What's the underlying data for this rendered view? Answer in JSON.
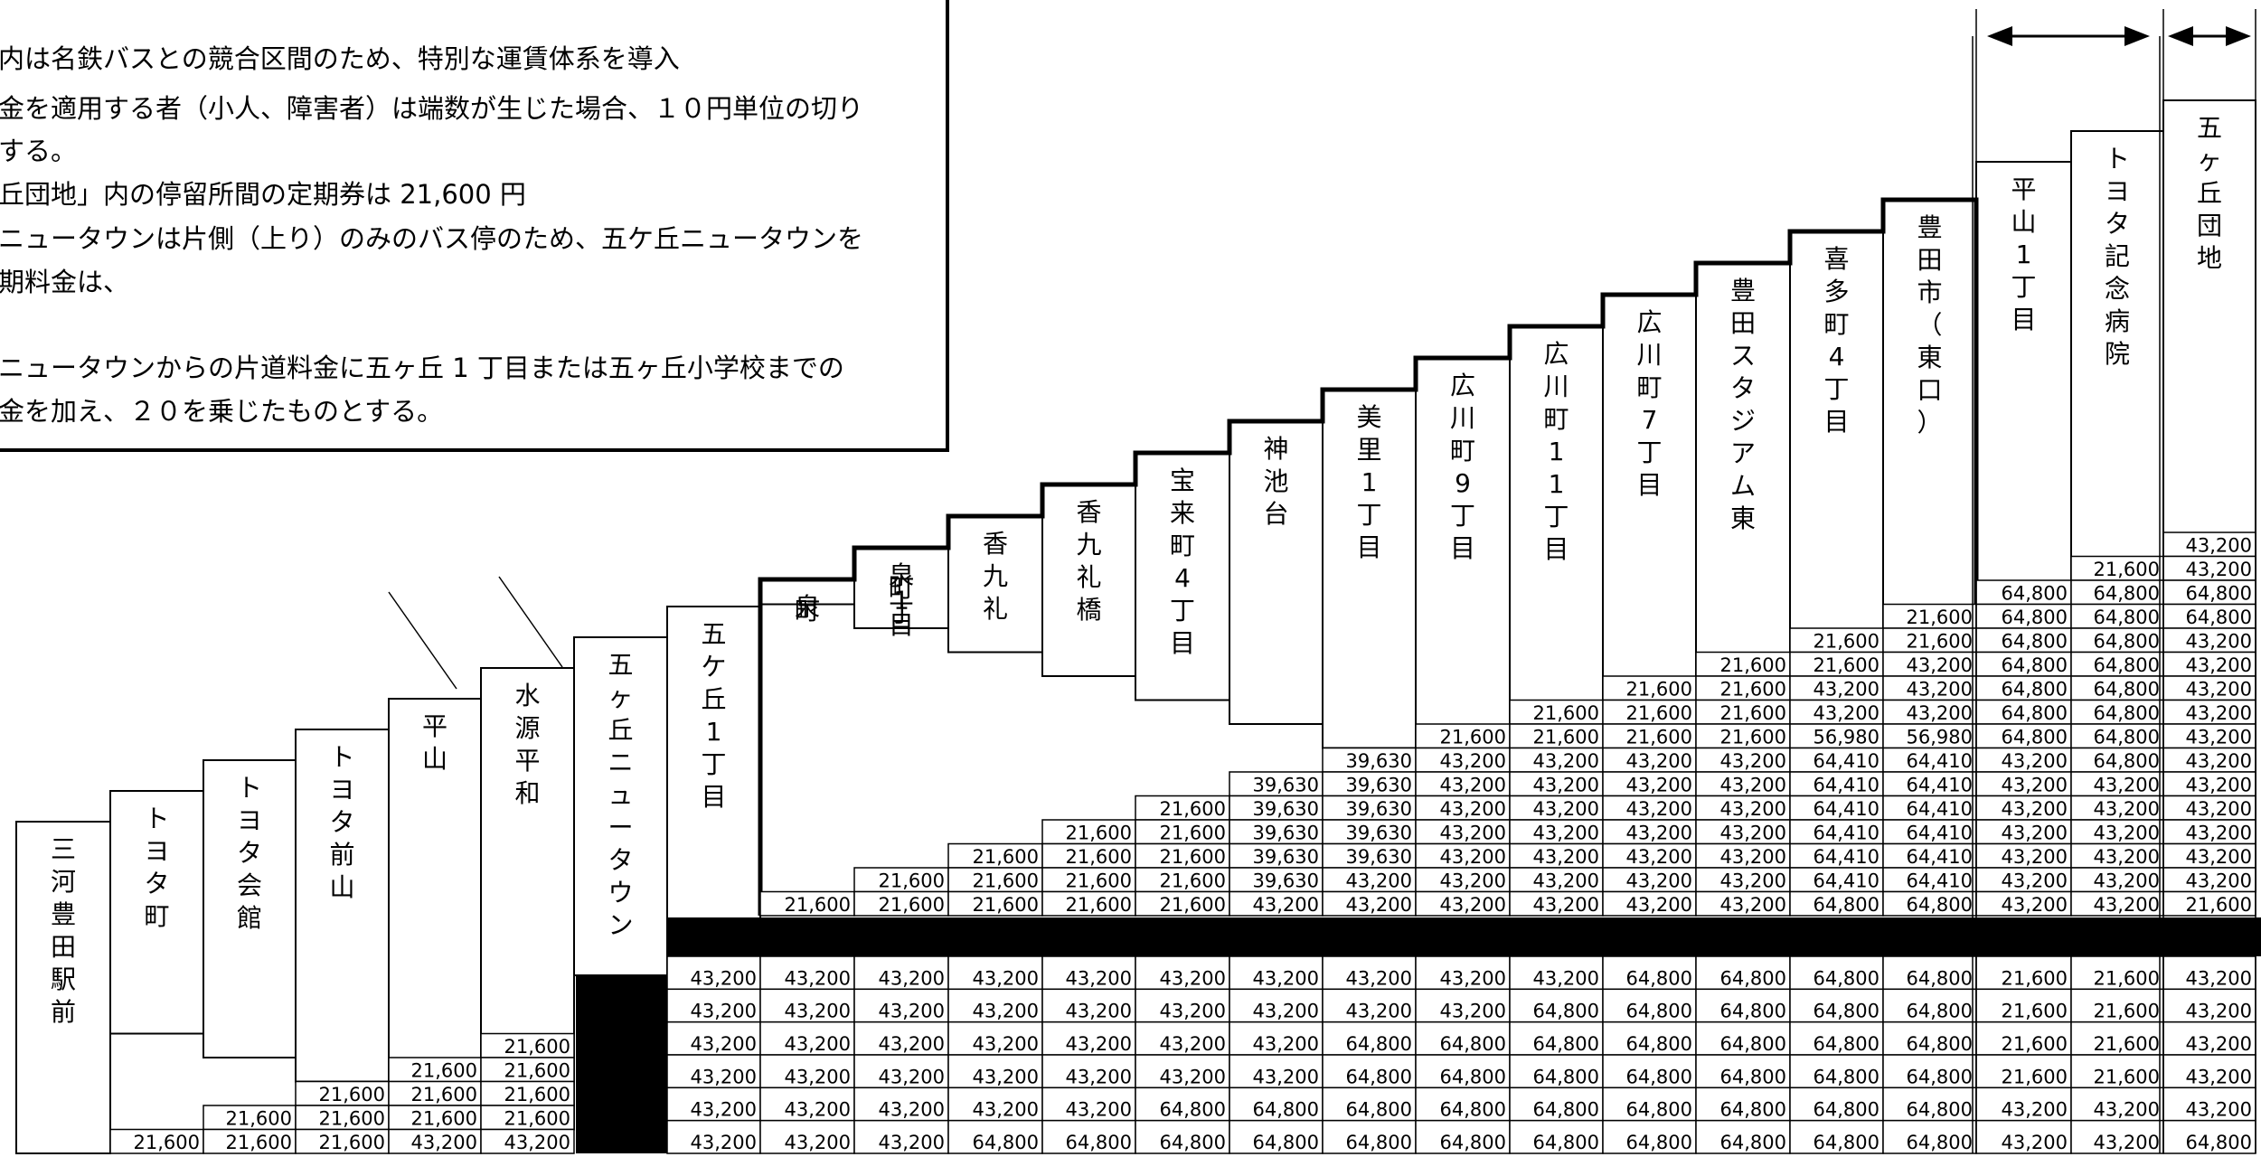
{
  "notes": {
    "lines": [
      "内は名鉄バスとの競合区間のため、特別な運賃体系を導入",
      "金を適用する者（小人、障害者）は端数が生じた場合、１０円単位の切り",
      "する。",
      "丘団地」内の停留所間の定期券は 21,600 円",
      "ニュータウンは片側（上り）のみのバス停のため、五ケ丘ニュータウンを",
      "期料金は、",
      "ニュータウンからの片道料金に五ヶ丘 1 丁目または五ヶ丘小学校までの",
      "金を加え、２０を乗じたものとする。"
    ]
  },
  "stops": [
    "三河豊田駅前",
    "トヨタ町",
    "トヨタ会館",
    "トヨタ前山",
    "平山",
    "水源平和",
    "五ヶ丘ニュータウン",
    "五ケ丘1丁目",
    "泉町",
    "泉町1丁目",
    "香九礼",
    "香九礼橋",
    "宝来町4丁目",
    "神池台",
    "美里1丁目",
    "広川町9丁目",
    "広川町11丁目",
    "広川町7丁目",
    "豊田スタジアム東",
    "喜多町4丁目",
    "豊田市（東口）",
    "平山1丁目",
    "トヨタ記念病院",
    "五ヶ丘団地"
  ],
  "fares": {
    "upper_rows": [
      {
        "start": 23,
        "values": [
          "43,200"
        ]
      },
      {
        "start": 22,
        "values": [
          "21,600",
          "43,200"
        ]
      },
      {
        "start": 21,
        "values": [
          "64,800",
          "64,800",
          "64,800"
        ]
      },
      {
        "start": 20,
        "values": [
          "21,600",
          "64,800",
          "64,800",
          "64,800"
        ]
      },
      {
        "start": 19,
        "values": [
          "21,600",
          "21,600",
          "64,800",
          "64,800",
          "43,200"
        ]
      },
      {
        "start": 18,
        "values": [
          "21,600",
          "21,600",
          "43,200",
          "64,800",
          "64,800",
          "43,200"
        ]
      },
      {
        "start": 17,
        "values": [
          "21,600",
          "21,600",
          "43,200",
          "43,200",
          "64,800",
          "64,800",
          "43,200"
        ]
      },
      {
        "start": 16,
        "values": [
          "21,600",
          "21,600",
          "21,600",
          "43,200",
          "43,200",
          "64,800",
          "64,800",
          "43,200"
        ]
      },
      {
        "start": 15,
        "values": [
          "21,600",
          "21,600",
          "21,600",
          "21,600",
          "56,980",
          "56,980",
          "64,800",
          "64,800",
          "43,200"
        ]
      },
      {
        "start": 14,
        "values": [
          "39,630",
          "43,200",
          "43,200",
          "43,200",
          "43,200",
          "64,410",
          "64,410",
          "43,200",
          "64,800",
          "43,200"
        ]
      },
      {
        "start": 13,
        "values": [
          "39,630",
          "39,630",
          "43,200",
          "43,200",
          "43,200",
          "43,200",
          "64,410",
          "64,410",
          "43,200",
          "43,200",
          "43,200"
        ]
      },
      {
        "start": 12,
        "values": [
          "21,600",
          "39,630",
          "39,630",
          "43,200",
          "43,200",
          "43,200",
          "43,200",
          "64,410",
          "64,410",
          "43,200",
          "43,200",
          "43,200"
        ]
      },
      {
        "start": 11,
        "values": [
          "21,600",
          "21,600",
          "39,630",
          "39,630",
          "43,200",
          "43,200",
          "43,200",
          "43,200",
          "64,410",
          "64,410",
          "43,200",
          "43,200",
          "43,200"
        ]
      },
      {
        "start": 10,
        "values": [
          "21,600",
          "21,600",
          "21,600",
          "39,630",
          "39,630",
          "43,200",
          "43,200",
          "43,200",
          "43,200",
          "64,410",
          "64,410",
          "43,200",
          "43,200",
          "43,200"
        ]
      },
      {
        "start": 9,
        "values": [
          "21,600",
          "21,600",
          "21,600",
          "21,600",
          "39,630",
          "43,200",
          "43,200",
          "43,200",
          "43,200",
          "43,200",
          "64,410",
          "64,410",
          "43,200",
          "43,200",
          "43,200"
        ]
      },
      {
        "start": 8,
        "values": [
          "21,600",
          "21,600",
          "21,600",
          "21,600",
          "21,600",
          "43,200",
          "43,200",
          "43,200",
          "43,200",
          "43,200",
          "43,200",
          "64,800",
          "64,800",
          "43,200",
          "43,200",
          "21,600"
        ]
      }
    ],
    "left_rows": [
      {
        "start": 5,
        "values": [
          "21,600"
        ]
      },
      {
        "start": 4,
        "values": [
          "21,600",
          "21,600"
        ]
      },
      {
        "start": 3,
        "values": [
          "21,600",
          "21,600",
          "21,600"
        ]
      },
      {
        "start": 2,
        "values": [
          "21,600",
          "21,600",
          "21,600",
          "21,600"
        ]
      },
      {
        "start": 1,
        "values": [
          "21,600",
          "21,600",
          "21,600",
          "43,200",
          "43,200"
        ]
      }
    ],
    "lower_rows": [
      [
        "43,200",
        "43,200",
        "43,200",
        "43,200",
        "43,200",
        "43,200",
        "43,200",
        "43,200",
        "43,200",
        "43,200",
        "64,800",
        "64,800",
        "64,800",
        "64,800",
        "21,600",
        "21,600",
        "43,200"
      ],
      [
        "43,200",
        "43,200",
        "43,200",
        "43,200",
        "43,200",
        "43,200",
        "43,200",
        "43,200",
        "43,200",
        "64,800",
        "64,800",
        "64,800",
        "64,800",
        "64,800",
        "21,600",
        "21,600",
        "43,200"
      ],
      [
        "43,200",
        "43,200",
        "43,200",
        "43,200",
        "43,200",
        "43,200",
        "43,200",
        "64,800",
        "64,800",
        "64,800",
        "64,800",
        "64,800",
        "64,800",
        "64,800",
        "21,600",
        "21,600",
        "43,200"
      ],
      [
        "43,200",
        "43,200",
        "43,200",
        "43,200",
        "43,200",
        "43,200",
        "43,200",
        "64,800",
        "64,800",
        "64,800",
        "64,800",
        "64,800",
        "64,800",
        "64,800",
        "21,600",
        "21,600",
        "43,200"
      ],
      [
        "43,200",
        "43,200",
        "43,200",
        "43,200",
        "43,200",
        "64,800",
        "64,800",
        "64,800",
        "64,800",
        "64,800",
        "64,800",
        "64,800",
        "64,800",
        "64,800",
        "43,200",
        "43,200",
        "43,200"
      ],
      [
        "43,200",
        "43,200",
        "43,200",
        "64,800",
        "64,800",
        "64,800",
        "64,800",
        "64,800",
        "64,800",
        "64,800",
        "64,800",
        "64,800",
        "64,800",
        "64,800",
        "43,200",
        "43,200",
        "64,800"
      ]
    ]
  }
}
